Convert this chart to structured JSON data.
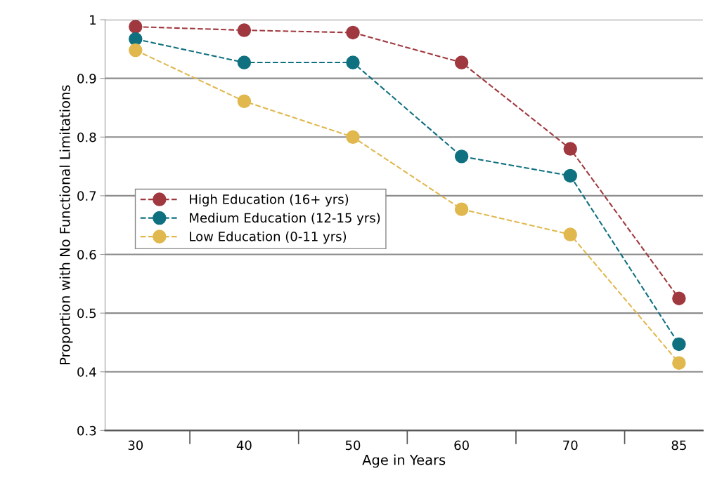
{
  "chart_data": {
    "type": "line",
    "xlabel": "Age in Years",
    "ylabel": "Proportion with No Functional Limitations",
    "categories": [
      "30",
      "40",
      "50",
      "60",
      "70",
      "85"
    ],
    "series": [
      {
        "name": "High Education (16+ yrs)",
        "color": "#a0393f",
        "values": [
          0.988,
          0.982,
          0.978,
          0.927,
          0.78,
          0.525
        ]
      },
      {
        "name": "Medium Education (12-15 yrs)",
        "color": "#0f7080",
        "values": [
          0.967,
          0.927,
          0.927,
          0.767,
          0.734,
          0.447
        ]
      },
      {
        "name": "Low Education (0-11 yrs)",
        "color": "#e0b84e",
        "values": [
          0.948,
          0.861,
          0.8,
          0.677,
          0.634,
          0.415
        ]
      }
    ],
    "ylim": [
      0.3,
      1
    ],
    "yticks": [
      {
        "value": 0.3,
        "label": "0.3"
      },
      {
        "value": 0.4,
        "label": "0.4"
      },
      {
        "value": 0.5,
        "label": "0.5"
      },
      {
        "value": 0.6,
        "label": "0.6"
      },
      {
        "value": 0.7,
        "label": "0.7"
      },
      {
        "value": 0.8,
        "label": "0.8"
      },
      {
        "value": 0.9,
        "label": "0.9"
      },
      1
    ],
    "grid": "y",
    "legend": "center left",
    "marker": "circle",
    "line_style": "dashed"
  }
}
